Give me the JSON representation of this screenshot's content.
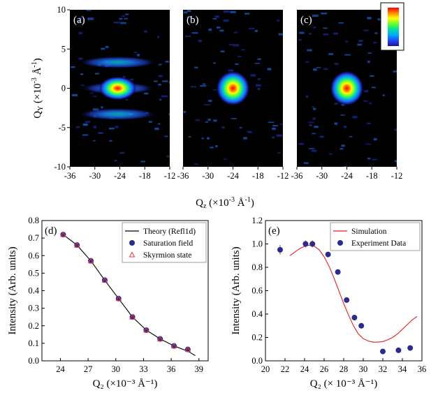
{
  "figure_xlabel": "Q₂ (×10⁻³ Å⁻¹)",
  "chart_data": [
    {
      "type": "heatmap",
      "panel": "(a)",
      "xlim": [
        -36,
        -12
      ],
      "ylim": [
        -10,
        10
      ],
      "xticks": [
        "-36",
        "-30",
        "-24",
        "-18",
        "-12"
      ],
      "yticks": [
        "10",
        "5",
        "0",
        "-5",
        "-10"
      ],
      "ylabel": "Qᵧ (×10⁻³ Å⁻¹)",
      "spots": [
        {
          "qz": -24.5,
          "qy": 0,
          "intensity": 1.0,
          "sx": 4.5,
          "sy": 1.5
        },
        {
          "qz": -24.5,
          "qy": 0,
          "intensity": 0.35,
          "sx": 9,
          "sy": 0.8
        },
        {
          "qz": -24.5,
          "qy": 3.3,
          "intensity": 0.35,
          "sx": 9.5,
          "sy": 0.8
        },
        {
          "qz": -24.5,
          "qy": -3.3,
          "intensity": 0.35,
          "sx": 9.5,
          "sy": 0.8
        }
      ]
    },
    {
      "type": "heatmap",
      "panel": "(b)",
      "xlim": [
        -36,
        -12
      ],
      "ylim": [
        -10,
        10
      ],
      "xticks": [
        "-36",
        "-30",
        "-24",
        "-18",
        "-12"
      ],
      "spots": [
        {
          "qz": -24,
          "qy": 0,
          "intensity": 1.0,
          "sx": 4,
          "sy": 2.2
        }
      ]
    },
    {
      "type": "heatmap",
      "panel": "(c)",
      "xlim": [
        -36,
        -12
      ],
      "ylim": [
        -10,
        10
      ],
      "xticks": [
        "-36",
        "-30",
        "-24",
        "-18",
        "-12"
      ],
      "colorbar": [
        "#ff0000",
        "#ff8800",
        "#ffff00",
        "#66ff33",
        "#00dd99",
        "#00aaff",
        "#2244ff",
        "#1a1a8a"
      ],
      "spots": [
        {
          "qz": -24,
          "qy": 0,
          "intensity": 1.0,
          "sx": 4,
          "sy": 2.2
        }
      ]
    },
    {
      "type": "line",
      "panel": "(d)",
      "xlim": [
        22,
        40
      ],
      "ylim": [
        0,
        0.8
      ],
      "xticks": [
        "24",
        "27",
        "30",
        "33",
        "36",
        "39"
      ],
      "yticks": [
        "0.0",
        "0.1",
        "0.2",
        "0.3",
        "0.4",
        "0.5",
        "0.6",
        "0.7",
        "0.8"
      ],
      "xlabel": "Q₂ (×10⁻³ Å⁻¹)",
      "ylabel": "Intensity (Arb. units)",
      "legend_position": "top-right",
      "series": [
        {
          "name": "Theory (Refl1d)",
          "style": "line",
          "color": "#000000",
          "x": [
            24.3,
            25.8,
            27.3,
            28.8,
            30.3,
            31.8,
            33.3,
            34.8,
            36.3,
            37.8,
            38.6
          ],
          "y": [
            0.72,
            0.66,
            0.57,
            0.46,
            0.355,
            0.25,
            0.175,
            0.125,
            0.085,
            0.055,
            0.03
          ]
        },
        {
          "name": "Saturation field",
          "style": "filled-circle",
          "color": "#2b2b8c",
          "x": [
            24.3,
            25.8,
            27.3,
            28.8,
            30.3,
            31.8,
            33.3,
            34.8,
            36.3,
            37.8
          ],
          "y": [
            0.72,
            0.66,
            0.57,
            0.46,
            0.355,
            0.25,
            0.175,
            0.125,
            0.085,
            0.065
          ]
        },
        {
          "name": "Skyrmion state",
          "style": "open-triangle",
          "color": "#e83a3a",
          "x": [
            24.3,
            25.8,
            27.3,
            28.8,
            30.3,
            31.8,
            33.3,
            34.8,
            36.3,
            37.8
          ],
          "y": [
            0.72,
            0.66,
            0.57,
            0.46,
            0.355,
            0.25,
            0.175,
            0.125,
            0.085,
            0.065
          ]
        }
      ]
    },
    {
      "type": "line",
      "panel": "(e)",
      "xlim": [
        20,
        36
      ],
      "ylim": [
        0,
        1.2
      ],
      "xticks": [
        "20",
        "22",
        "24",
        "26",
        "28",
        "30",
        "32",
        "34",
        "36"
      ],
      "yticks": [
        "0.0",
        "0.2",
        "0.4",
        "0.6",
        "0.8",
        "1.0",
        "1.2"
      ],
      "xlabel": "Q₂ (× 10⁻³ Å⁻¹)",
      "ylabel": "Intensity (Arb. units)",
      "legend_position": "top-right",
      "series": [
        {
          "name": "Simulation",
          "style": "line",
          "color": "#e02020",
          "x": [
            22.5,
            23,
            23.5,
            24,
            24.5,
            25,
            25.5,
            26,
            26.5,
            27,
            27.5,
            28,
            28.5,
            29,
            29.5,
            30,
            30.5,
            31,
            31.5,
            32,
            32.5,
            33,
            33.5,
            34,
            34.5,
            35,
            35.5
          ],
          "y": [
            0.9,
            0.93,
            0.96,
            0.98,
            0.99,
            0.98,
            0.95,
            0.89,
            0.81,
            0.71,
            0.6,
            0.49,
            0.39,
            0.3,
            0.23,
            0.19,
            0.17,
            0.16,
            0.16,
            0.165,
            0.18,
            0.2,
            0.23,
            0.27,
            0.31,
            0.35,
            0.38
          ]
        },
        {
          "name": "Experiment Data",
          "style": "filled-circle",
          "color": "#2b2b8c",
          "x": [
            21.5,
            24.1,
            24.8,
            26.4,
            27.4,
            28.3,
            29.1,
            29.8,
            32.0,
            33.6,
            34.8
          ],
          "y": [
            0.95,
            1.0,
            1.0,
            0.91,
            0.76,
            0.52,
            0.37,
            0.3,
            0.08,
            0.09,
            0.11
          ],
          "yerr": [
            0.04,
            0.03,
            0.03,
            0.02,
            0.02,
            0.02,
            0.02,
            0.02,
            0.01,
            0.01,
            0.01
          ]
        }
      ]
    }
  ]
}
